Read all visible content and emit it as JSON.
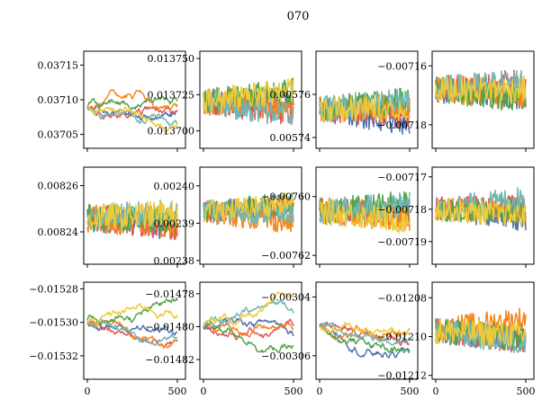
{
  "chart_data": {
    "type": "line",
    "title": "070",
    "series_colors": [
      "#4c72b0",
      "#e45756",
      "#f58518",
      "#54a24b",
      "#72b7b2",
      "#eeca3b"
    ],
    "x_ticks": [
      "0",
      "500"
    ],
    "x_range": [
      0,
      500
    ],
    "panels": [
      {
        "name": "r0c0",
        "ylim": [
          0.03703,
          0.03717
        ],
        "yticks": [
          {
            "v": 0.03715,
            "label": "0.03715"
          },
          {
            "v": 0.0371,
            "label": "0.03710"
          },
          {
            "v": 0.03705,
            "label": "0.03705"
          }
        ],
        "center": 0.03709,
        "spread": 1.2e-05,
        "mode": "walk"
      },
      {
        "name": "r0c1",
        "ylim": [
          0.013688,
          0.013755
        ],
        "yticks": [
          {
            "v": 0.01375,
            "label": "0.013750"
          },
          {
            "v": 0.013725,
            "label": "0.013725"
          },
          {
            "v": 0.0137,
            "label": "0.013700"
          }
        ],
        "center": 0.01372,
        "spread": 6e-06,
        "mode": "noise"
      },
      {
        "name": "r0c2",
        "ylim": [
          0.005735,
          0.00578
        ],
        "yticks": [
          {
            "v": 0.00576,
            "label": "0.00576"
          },
          {
            "v": 0.00574,
            "label": "0.00574"
          }
        ],
        "center": 0.005753,
        "spread": 4e-06,
        "mode": "noise"
      },
      {
        "name": "r0c3",
        "ylim": [
          -0.007188,
          -0.007155
        ],
        "yticks": [
          {
            "v": -0.00716,
            "label": "−0.00716"
          },
          {
            "v": -0.00718,
            "label": "−0.00718"
          }
        ],
        "center": -0.007168,
        "spread": 3e-06,
        "mode": "noise"
      },
      {
        "name": "r1c0",
        "ylim": [
          0.008226,
          0.008268
        ],
        "yticks": [
          {
            "v": 0.00826,
            "label": "0.00826"
          },
          {
            "v": 0.00824,
            "label": "0.00824"
          }
        ],
        "center": 0.008246,
        "spread": 4e-06,
        "mode": "noise"
      },
      {
        "name": "r1c1",
        "ylim": [
          0.002379,
          0.002405
        ],
        "yticks": [
          {
            "v": 0.0024,
            "label": "0.00240"
          },
          {
            "v": 0.00239,
            "label": "0.00239"
          },
          {
            "v": 0.00238,
            "label": "0.00238"
          }
        ],
        "center": 0.002393,
        "spread": 2e-06,
        "mode": "noise"
      },
      {
        "name": "r1c2",
        "ylim": [
          -0.007623,
          -0.00759
        ],
        "yticks": [
          {
            "v": -0.0076,
            "label": "−0.00760"
          },
          {
            "v": -0.00762,
            "label": "−0.00762"
          }
        ],
        "center": -0.007605,
        "spread": 3e-06,
        "mode": "noise"
      },
      {
        "name": "r1c3",
        "ylim": [
          -0.007197,
          -0.007167
        ],
        "yticks": [
          {
            "v": -0.00717,
            "label": "−0.00717"
          },
          {
            "v": -0.00718,
            "label": "−0.00718"
          },
          {
            "v": -0.00719,
            "label": "−0.00719"
          }
        ],
        "center": -0.00718,
        "spread": 2.5e-06,
        "mode": "noise"
      },
      {
        "name": "r2c0",
        "ylim": [
          -0.015334,
          -0.015276
        ],
        "yticks": [
          {
            "v": -0.01528,
            "label": "−0.01528"
          },
          {
            "v": -0.0153,
            "label": "−0.01530"
          },
          {
            "v": -0.01532,
            "label": "−0.01532"
          }
        ],
        "center": -0.0153,
        "spread": 5e-06,
        "mode": "walk"
      },
      {
        "name": "r2c1",
        "ylim": [
          -0.014832,
          -0.014773
        ],
        "yticks": [
          {
            "v": -0.01478,
            "label": "−0.01478"
          },
          {
            "v": -0.0148,
            "label": "−0.01480"
          },
          {
            "v": -0.01482,
            "label": "−0.01482"
          }
        ],
        "center": -0.0148,
        "spread": 5e-06,
        "mode": "walk"
      },
      {
        "name": "r2c2",
        "ylim": [
          -0.003068,
          -0.003035
        ],
        "yticks": [
          {
            "v": -0.00304,
            "label": "−0.00304"
          },
          {
            "v": -0.00306,
            "label": "−0.00306"
          }
        ],
        "center": -0.00305,
        "spread": 3e-06,
        "mode": "walk"
      },
      {
        "name": "r2c3",
        "ylim": [
          -0.012122,
          -0.012072
        ],
        "yticks": [
          {
            "v": -0.01208,
            "label": "−0.01208"
          },
          {
            "v": -0.0121,
            "label": "−0.01210"
          },
          {
            "v": -0.01212,
            "label": "−0.01212"
          }
        ],
        "center": -0.012097,
        "spread": 4.5e-06,
        "mode": "noise"
      }
    ]
  }
}
